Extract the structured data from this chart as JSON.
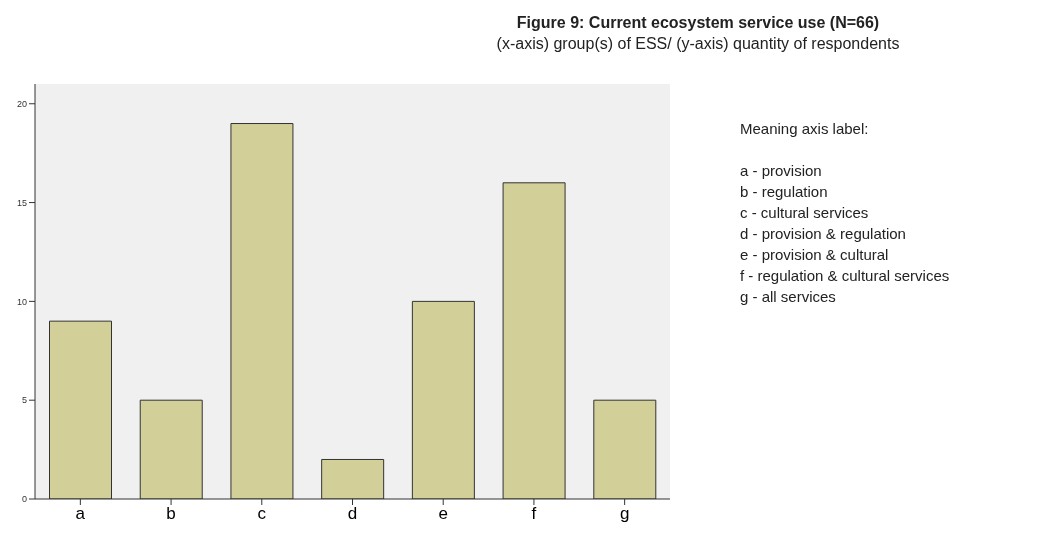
{
  "chart_data": {
    "type": "bar",
    "title": "Figure 9: Current ecosystem service use (N=66)",
    "subtitle": "(x-axis) group(s) of ESS/ (y-axis) quantity of respondents",
    "categories": [
      "a",
      "b",
      "c",
      "d",
      "e",
      "f",
      "g"
    ],
    "values": [
      9,
      5,
      19,
      2,
      10,
      16,
      5
    ],
    "color": "#d3cf98",
    "ylim": [
      0,
      21
    ],
    "yticks": [
      0,
      5,
      10,
      15,
      20
    ],
    "annotations": [
      "Meaning axis label:",
      "a - provision",
      "b - regulation",
      "c - cultural services",
      "d - provision & regulation",
      "e - provision & cultural",
      "f - regulation & cultural services",
      "g - all services"
    ]
  }
}
